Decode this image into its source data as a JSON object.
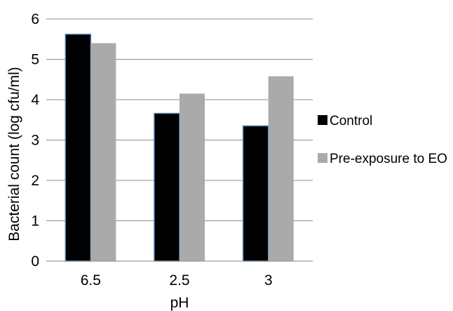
{
  "chart_data": {
    "type": "bar",
    "xlabel": "pH",
    "ylabel": "Bacterial count (log cfu/ml)",
    "categories": [
      "6.5",
      "2.5",
      "3"
    ],
    "ylim": [
      0,
      6
    ],
    "yticks": [
      "0",
      "1",
      "2",
      "3",
      "4",
      "5",
      "6"
    ],
    "grid": true,
    "legend_position": "right",
    "series": [
      {
        "name": "Control",
        "values": [
          5.62,
          3.66,
          3.35
        ],
        "color": "#000000",
        "edge_color": "#4a7eb0"
      },
      {
        "name": "Pre-exposure to EO",
        "values": [
          5.4,
          4.15,
          4.58
        ],
        "color": "#aaaaaa"
      }
    ]
  }
}
